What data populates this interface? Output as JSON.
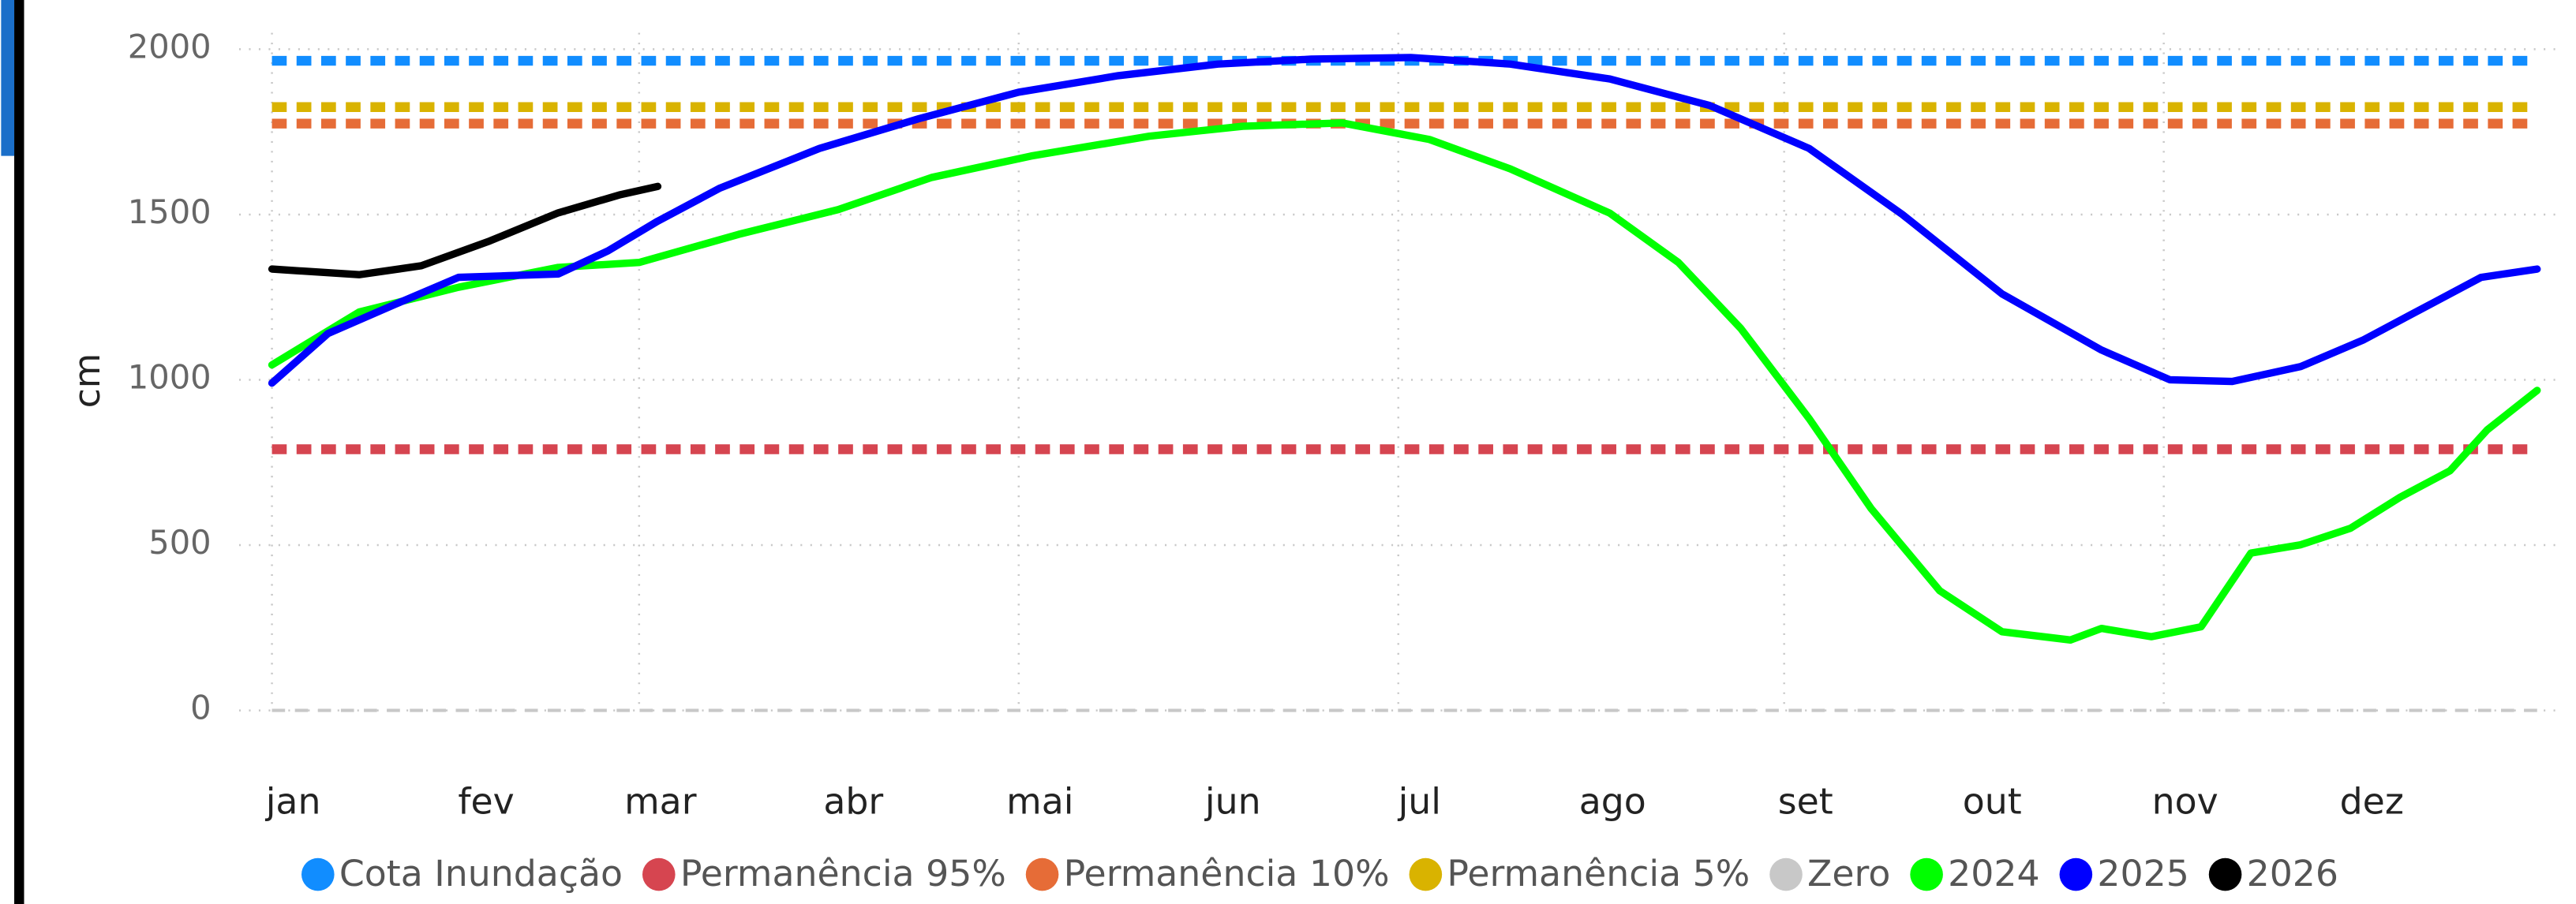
{
  "chart_data": {
    "type": "line",
    "y_label": "cm",
    "xlim": [
      1,
      365
    ],
    "ylim": [
      0,
      2000
    ],
    "xticks": [
      {
        "value": 1,
        "label": "jan"
      },
      {
        "value": 32,
        "label": "fev"
      },
      {
        "value": 60,
        "label": "mar"
      },
      {
        "value": 91,
        "label": "abr"
      },
      {
        "value": 121,
        "label": "mai"
      },
      {
        "value": 152,
        "label": "jun"
      },
      {
        "value": 182,
        "label": "jul"
      },
      {
        "value": 213,
        "label": "ago"
      },
      {
        "value": 244,
        "label": "set"
      },
      {
        "value": 274,
        "label": "out"
      },
      {
        "value": 305,
        "label": "nov"
      },
      {
        "value": 335,
        "label": "dez"
      }
    ],
    "yticks": [
      0,
      500,
      1000,
      1500,
      2000
    ],
    "grid": true,
    "legend": "bottom",
    "series": [
      {
        "name": "Cota Inundação",
        "color": "#118DFF",
        "style": "dashed",
        "x": [
          1,
          365
        ],
        "values": [
          1965,
          1965
        ]
      },
      {
        "name": "Permanência 95%",
        "color": "#D64550",
        "style": "dashed",
        "x": [
          1,
          365
        ],
        "values": [
          790,
          790
        ]
      },
      {
        "name": "Permanência 10%",
        "color": "#E66C37",
        "style": "dashed",
        "x": [
          1,
          365
        ],
        "values": [
          1775,
          1775
        ]
      },
      {
        "name": "Permanência 5%",
        "color": "#D9B300",
        "style": "dashed",
        "x": [
          1,
          365
        ],
        "values": [
          1825,
          1825
        ]
      },
      {
        "name": "Zero",
        "color": "#C8C8C8",
        "style": "dashed",
        "x": [
          1,
          365
        ],
        "values": [
          0,
          0
        ]
      },
      {
        "name": "2024",
        "color": "#00FF00",
        "style": "solid",
        "x": [
          1,
          15,
          31,
          47,
          60,
          76,
          92,
          107,
          123,
          142,
          157,
          173,
          187,
          200,
          216,
          227,
          237,
          248,
          258,
          269,
          279,
          290,
          295,
          303,
          311,
          319,
          327,
          335,
          343,
          351,
          357,
          365
        ],
        "values": [
          1045,
          1205,
          1280,
          1340,
          1355,
          1440,
          1515,
          1612,
          1677,
          1737,
          1767,
          1777,
          1727,
          1638,
          1504,
          1355,
          1156,
          883,
          610,
          362,
          238,
          213,
          248,
          223,
          253,
          476,
          501,
          551,
          645,
          725,
          849,
          968
        ]
      },
      {
        "name": "2025",
        "color": "#0000FF",
        "style": "solid",
        "x": [
          1,
          10,
          21,
          31,
          39,
          47,
          55,
          63,
          73,
          89,
          105,
          121,
          137,
          153,
          168,
          184,
          200,
          216,
          232,
          248,
          263,
          279,
          295,
          306,
          316,
          327,
          337,
          348,
          356,
          365
        ],
        "values": [
          990,
          1140,
          1230,
          1310,
          1315,
          1320,
          1390,
          1480,
          1580,
          1700,
          1790,
          1870,
          1920,
          1955,
          1970,
          1975,
          1955,
          1910,
          1830,
          1700,
          1500,
          1260,
          1090,
          1000,
          995,
          1040,
          1120,
          1230,
          1310,
          1335
        ]
      },
      {
        "name": "2026",
        "color": "#000000",
        "style": "solid",
        "x": [
          1,
          15,
          25,
          36,
          47,
          57,
          63
        ],
        "values": [
          1335,
          1318,
          1345,
          1420,
          1505,
          1560,
          1585
        ]
      }
    ]
  }
}
